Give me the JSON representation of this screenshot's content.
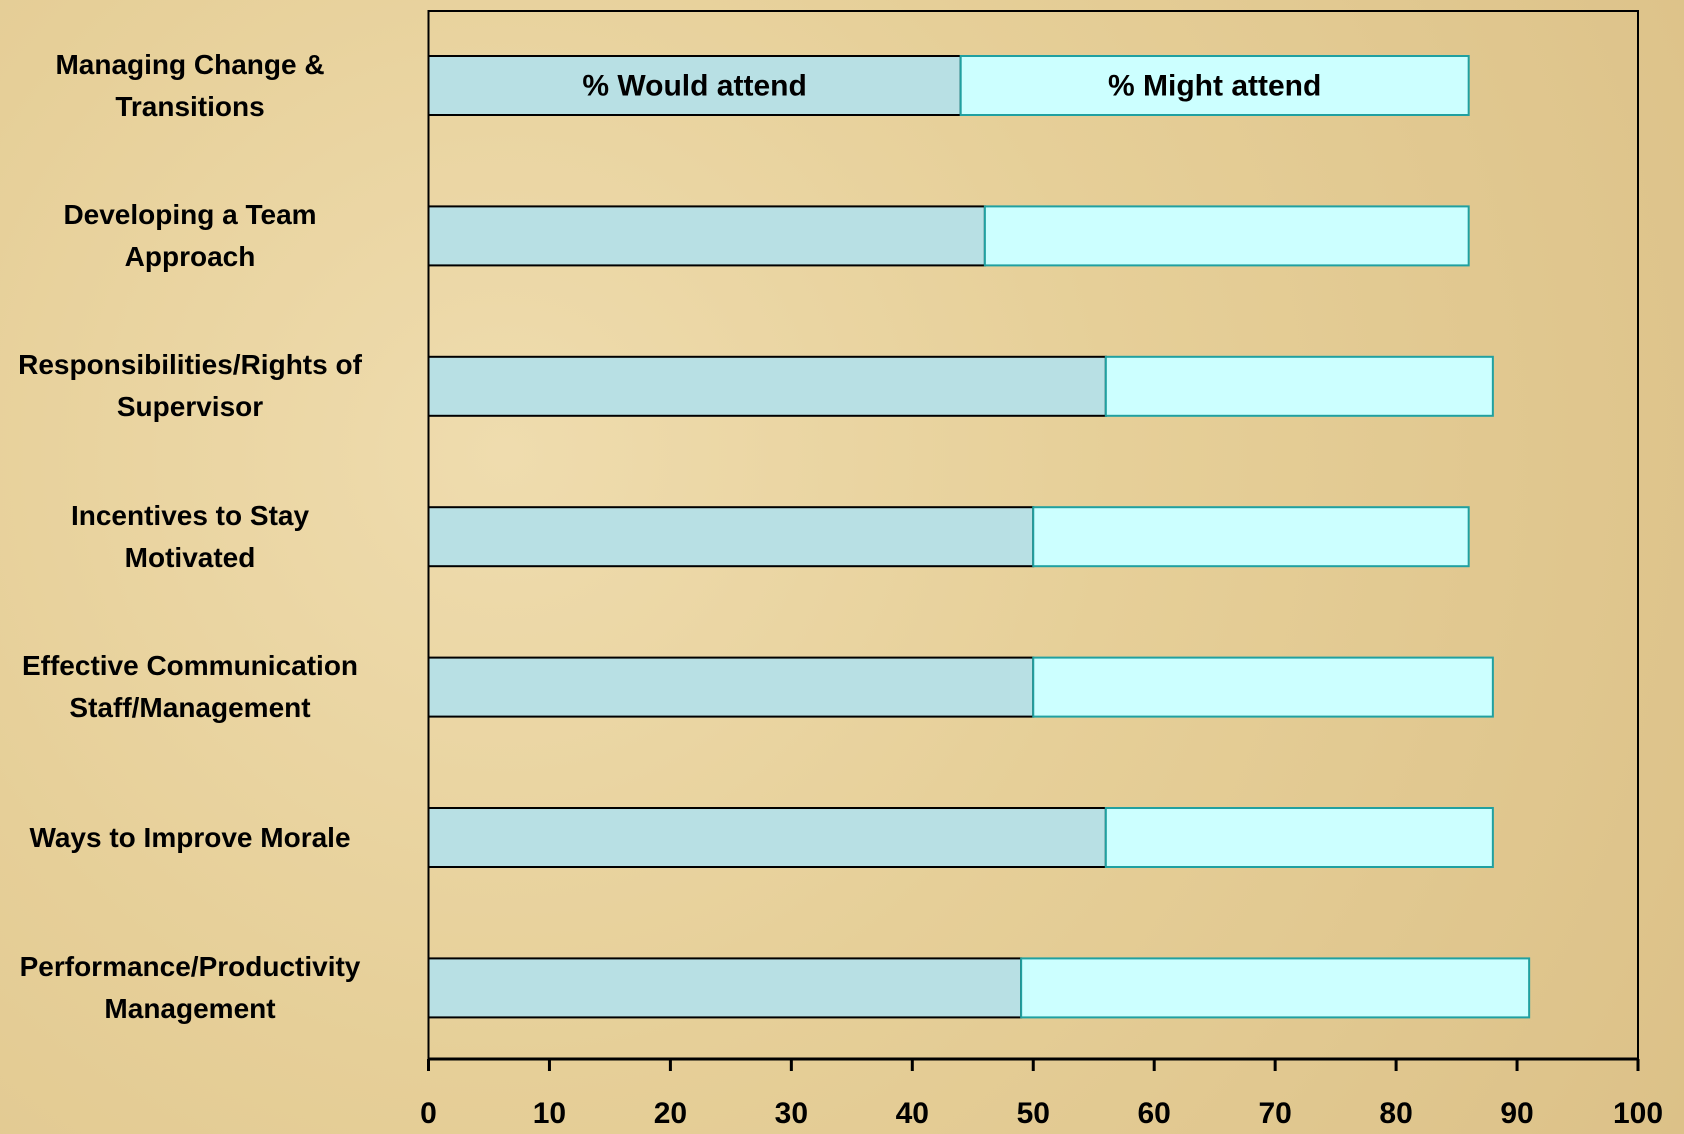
{
  "chart_data": {
    "type": "bar",
    "orientation": "horizontal",
    "stacked": true,
    "categories": [
      "Managing Change &\nTransitions",
      "Developing a Team\nApproach",
      "Responsibilities/Rights of\nSupervisor",
      "Incentives to Stay\nMotivated",
      "Effective Communication\nStaff/Management",
      "Ways to Improve Morale",
      "Performance/Productivity\nManagement"
    ],
    "series": [
      {
        "name": "% Would attend",
        "color": "#b8e0e4",
        "values": [
          44,
          46,
          56,
          50,
          50,
          56,
          49
        ]
      },
      {
        "name": "% Might attend",
        "color": "#ccffff",
        "values": [
          42,
          40,
          32,
          36,
          38,
          32,
          42
        ]
      }
    ],
    "xlim": [
      0,
      100
    ],
    "xticks": [
      0,
      10,
      20,
      30,
      40,
      50,
      60,
      70,
      80,
      90,
      100
    ]
  }
}
